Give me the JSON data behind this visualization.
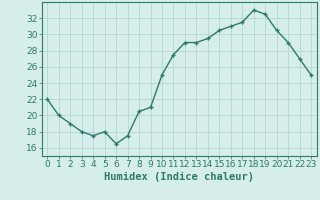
{
  "x": [
    0,
    1,
    2,
    3,
    4,
    5,
    6,
    7,
    8,
    9,
    10,
    11,
    12,
    13,
    14,
    15,
    16,
    17,
    18,
    19,
    20,
    21,
    22,
    23
  ],
  "y": [
    22,
    20,
    19,
    18,
    17.5,
    18,
    16.5,
    17.5,
    20.5,
    21,
    25,
    27.5,
    29,
    29,
    29.5,
    30.5,
    31,
    31.5,
    33,
    32.5,
    30.5,
    29,
    27,
    25
  ],
  "line_color": "#2d7a6a",
  "marker": "+",
  "marker_color": "#2d7a6a",
  "bg_color": "#d5eeeb",
  "grid_color": "#aed4cf",
  "xlabel": "Humidex (Indice chaleur)",
  "ylim": [
    15,
    34
  ],
  "xlim": [
    -0.5,
    23.5
  ],
  "yticks": [
    16,
    18,
    20,
    22,
    24,
    26,
    28,
    30,
    32
  ],
  "xtick_labels": [
    "0",
    "1",
    "2",
    "3",
    "4",
    "5",
    "6",
    "7",
    "8",
    "9",
    "10",
    "11",
    "12",
    "13",
    "14",
    "15",
    "16",
    "17",
    "18",
    "19",
    "20",
    "21",
    "22",
    "23"
  ],
  "xlabel_fontsize": 7.5,
  "tick_fontsize": 6.5,
  "axis_color": "#2d7a6a",
  "linewidth": 1.0,
  "markersize": 3.5
}
